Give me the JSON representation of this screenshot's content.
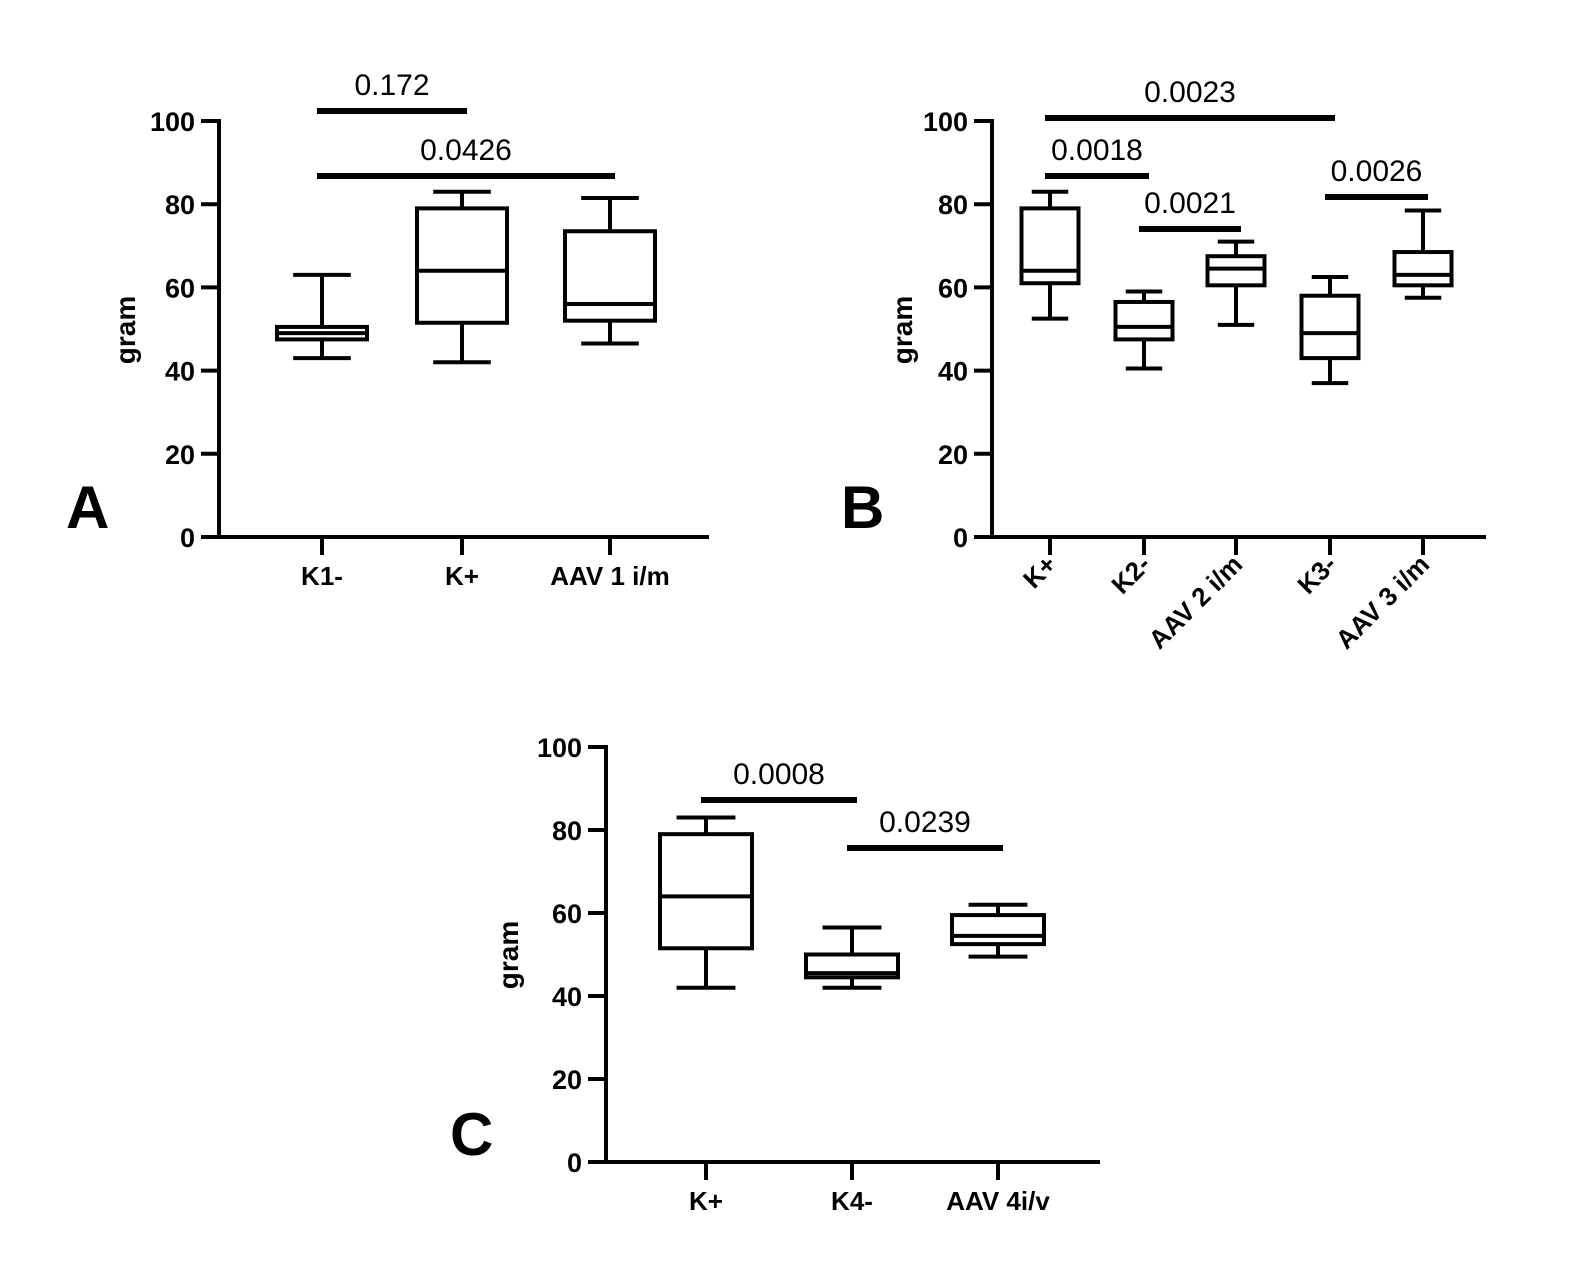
{
  "chart_data": [
    {
      "panel": "A",
      "type": "box",
      "ylabel": "gram",
      "ylim": [
        0,
        100
      ],
      "yticks": [
        0,
        20,
        40,
        60,
        80,
        100
      ],
      "categories": [
        "K1-",
        "K+",
        "AAV 1 i/m"
      ],
      "boxes": [
        {
          "min": 43,
          "q1": 47.5,
          "median": 49,
          "q3": 50.5,
          "max": 63
        },
        {
          "min": 42,
          "q1": 51.5,
          "median": 64,
          "q3": 79,
          "max": 83
        },
        {
          "min": 46.5,
          "q1": 52,
          "median": 56,
          "q3": 73.5,
          "max": 81.5
        }
      ],
      "comparisons": [
        {
          "from": 0,
          "to": 1,
          "level": 0,
          "label": "0.172"
        },
        {
          "from": 0,
          "to": 2,
          "level": 1,
          "label": "0.0426"
        }
      ]
    },
    {
      "panel": "B",
      "type": "box",
      "ylabel": "gram",
      "ylim": [
        0,
        100
      ],
      "yticks": [
        0,
        20,
        40,
        60,
        80,
        100
      ],
      "categories": [
        "K+",
        "K2-",
        "AAV 2 i/m",
        "K3-",
        "AAV 3 i/m"
      ],
      "boxes": [
        {
          "min": 52.5,
          "q1": 61,
          "median": 64,
          "q3": 79,
          "max": 83
        },
        {
          "min": 40.5,
          "q1": 47.5,
          "median": 50.5,
          "q3": 56.5,
          "max": 59
        },
        {
          "min": 51,
          "q1": 60.5,
          "median": 64.5,
          "q3": 67.5,
          "max": 71
        },
        {
          "min": 37,
          "q1": 43,
          "median": 49,
          "q3": 58,
          "max": 62.5
        },
        {
          "min": 57.5,
          "q1": 60.5,
          "median": 63,
          "q3": 68.5,
          "max": 78.5
        }
      ],
      "comparisons": [
        {
          "from": 0,
          "to": 3,
          "level": 0,
          "label": "0.0023"
        },
        {
          "from": 0,
          "to": 1,
          "level": 1,
          "label": "0.0018"
        },
        {
          "from": 3,
          "to": 4,
          "level": 2,
          "label": "0.0026"
        },
        {
          "from": 1,
          "to": 2,
          "level": 3,
          "label": "0.0021"
        }
      ]
    },
    {
      "panel": "C",
      "type": "box",
      "ylabel": "gram",
      "ylim": [
        0,
        100
      ],
      "yticks": [
        0,
        20,
        40,
        60,
        80,
        100
      ],
      "categories": [
        "K+",
        "K4-",
        "AAV 4i/v"
      ],
      "boxes": [
        {
          "min": 42,
          "q1": 51.5,
          "median": 64,
          "q3": 79,
          "max": 83
        },
        {
          "min": 42,
          "q1": 44.5,
          "median": 45.5,
          "q3": 50,
          "max": 56.5
        },
        {
          "min": 49.5,
          "q1": 52.5,
          "median": 54.5,
          "q3": 59.5,
          "max": 62
        }
      ],
      "comparisons": [
        {
          "from": 0,
          "to": 1,
          "level": 0,
          "label": "0.0008"
        },
        {
          "from": 1,
          "to": 2,
          "level": 1,
          "label": "0.0239"
        }
      ]
    }
  ]
}
